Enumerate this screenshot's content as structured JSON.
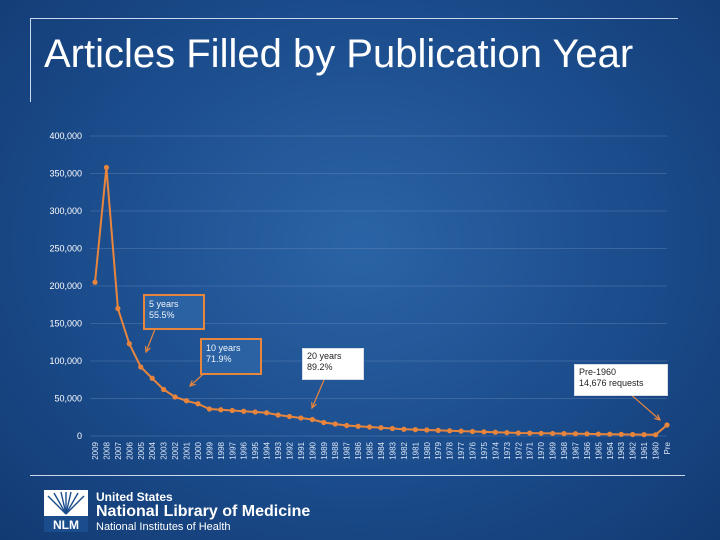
{
  "slide": {
    "title": "Articles Filled by Publication Year"
  },
  "footer": {
    "line1": "United States",
    "line2": "National Library of Medicine",
    "line3": "National Institutes of Health",
    "logo_text": "NLM"
  },
  "annotations": [
    {
      "text": "5 years\n55.5%"
    },
    {
      "text": "10 years\n71.9%"
    },
    {
      "text": "20 years\n89.2%"
    },
    {
      "text": "Pre-1960\n14,676 requests"
    }
  ],
  "colors": {
    "line": "#e8853d",
    "background": "#1b4c8c",
    "grid": "#6f93c2"
  },
  "chart_data": {
    "type": "line",
    "title": "",
    "xlabel": "",
    "ylabel": "",
    "ylim": [
      0,
      400000
    ],
    "yticks": [
      "0",
      "50,000",
      "100,000",
      "150,000",
      "200,000",
      "250,000",
      "300,000",
      "350,000",
      "400,000"
    ],
    "grid": true,
    "categories": [
      "2009",
      "2008",
      "2007",
      "2006",
      "2005",
      "2004",
      "2003",
      "2002",
      "2001",
      "2000",
      "1999",
      "1998",
      "1997",
      "1996",
      "1995",
      "1994",
      "1993",
      "1992",
      "1991",
      "1990",
      "1989",
      "1988",
      "1987",
      "1986",
      "1985",
      "1984",
      "1983",
      "1982",
      "1981",
      "1980",
      "1979",
      "1978",
      "1977",
      "1976",
      "1975",
      "1974",
      "1973",
      "1972",
      "1971",
      "1970",
      "1969",
      "1968",
      "1967",
      "1966",
      "1965",
      "1964",
      "1963",
      "1962",
      "1961",
      "1960",
      "Pre"
    ],
    "series": [
      {
        "values": [
          205000,
          358000,
          170000,
          123000,
          92000,
          77000,
          62000,
          52000,
          47000,
          43000,
          36000,
          35000,
          34000,
          33000,
          32000,
          31000,
          28000,
          26000,
          24000,
          22000,
          18000,
          16000,
          14000,
          13000,
          12000,
          11000,
          10000,
          9000,
          8500,
          8000,
          7500,
          7000,
          6500,
          6000,
          5500,
          5000,
          4500,
          4000,
          3800,
          3600,
          3400,
          3200,
          3000,
          2800,
          2600,
          2400,
          2200,
          2000,
          1800,
          1600,
          14676
        ]
      }
    ]
  }
}
